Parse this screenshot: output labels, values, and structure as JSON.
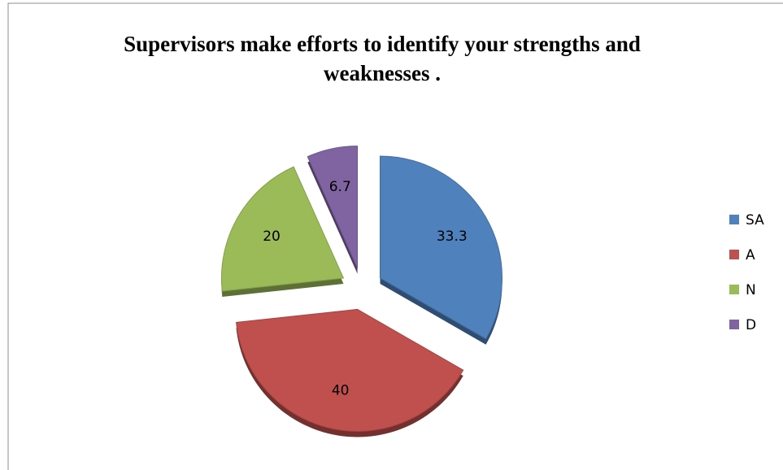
{
  "chart_data": {
    "type": "pie",
    "title": "Supervisors make efforts to identify your strengths and weaknesses .",
    "categories": [
      "SA",
      "A",
      "N",
      "D"
    ],
    "values": [
      33.3,
      40,
      20,
      6.7
    ],
    "colors": [
      "#4f81bd",
      "#c0504d",
      "#9bbb59",
      "#8064a2"
    ],
    "legend": "right"
  }
}
